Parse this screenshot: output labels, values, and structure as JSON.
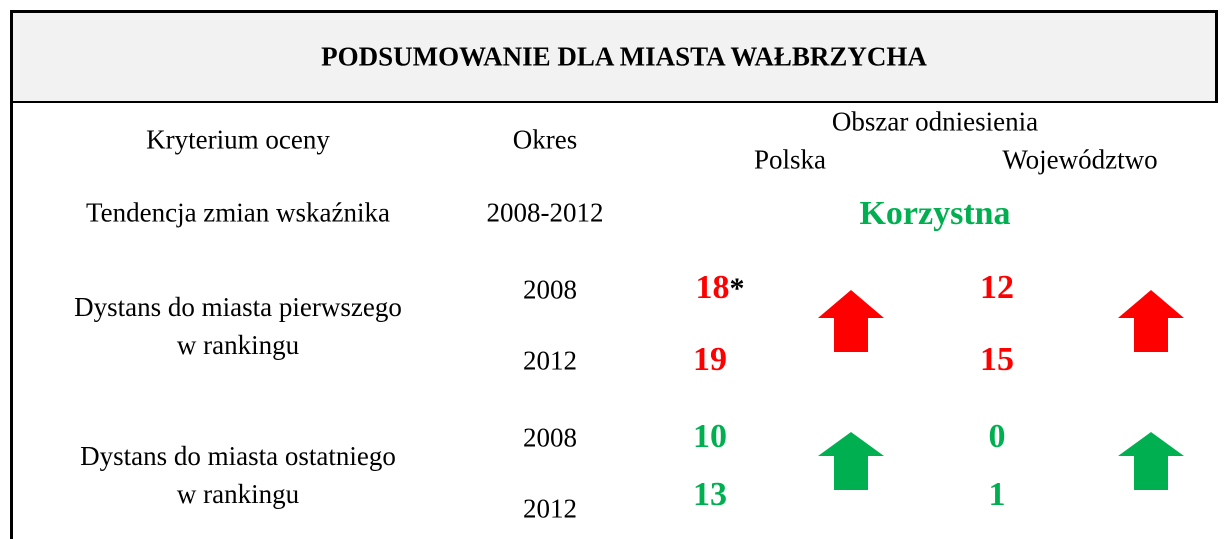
{
  "header": {
    "title": "PODSUMOWANIE DLA MIASTA WAŁBRZYCHA"
  },
  "columns": {
    "criterion": "Kryterium oceny",
    "period": "Okres",
    "area": "Obszar odniesienia",
    "poland": "Polska",
    "voivodeship": "Województwo"
  },
  "rows": [
    {
      "criterion": "Tendencja zmian wskaźnika",
      "period": "2008-2012",
      "result": "Korzystna"
    },
    {
      "criterion": [
        "Dystans do miasta pierwszego",
        "w rankingu"
      ],
      "periods": [
        "2008",
        "2012"
      ],
      "poland": [
        "18",
        "19"
      ],
      "poland_note": "*",
      "voivodeship": [
        "12",
        "15"
      ]
    },
    {
      "criterion": [
        "Dystans do miasta ostatniego",
        "w rankingu"
      ],
      "periods": [
        "2008",
        "2012"
      ],
      "poland": [
        "10",
        "13"
      ],
      "voivodeship": [
        "0",
        "1"
      ]
    }
  ]
}
